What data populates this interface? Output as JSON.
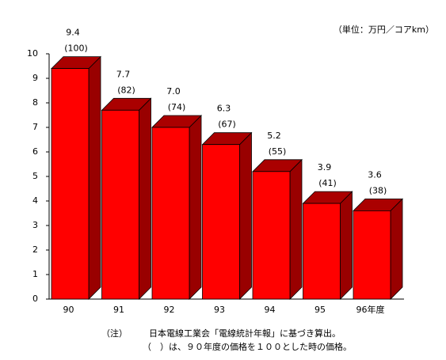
{
  "chart_data": {
    "type": "bar3d",
    "unit_note": "（単位：万円／コアkm）",
    "categories": [
      "90",
      "91",
      "92",
      "93",
      "94",
      "95",
      "96年度"
    ],
    "values": [
      9.4,
      7.7,
      7.0,
      6.3,
      5.2,
      3.9,
      3.6
    ],
    "value_labels": [
      "9.4",
      "7.7",
      "7.0",
      "6.3",
      "5.2",
      "3.9",
      "3.6"
    ],
    "index_values": [
      100,
      82,
      74,
      67,
      55,
      41,
      38
    ],
    "index_labels": [
      "(100)",
      "(82)",
      "(74)",
      "(67)",
      "(55)",
      "(41)",
      "(38)"
    ],
    "color": "#ff0000",
    "ylim": [
      0,
      10
    ],
    "yticks": [
      0,
      1,
      2,
      3,
      4,
      5,
      6,
      7,
      8,
      9,
      10
    ],
    "notes": [
      "（注）",
      "日本電線工業会「電線統計年報」に基づき算出。",
      "（　）は、９０年度の価格を１００とした時の価格。"
    ]
  }
}
